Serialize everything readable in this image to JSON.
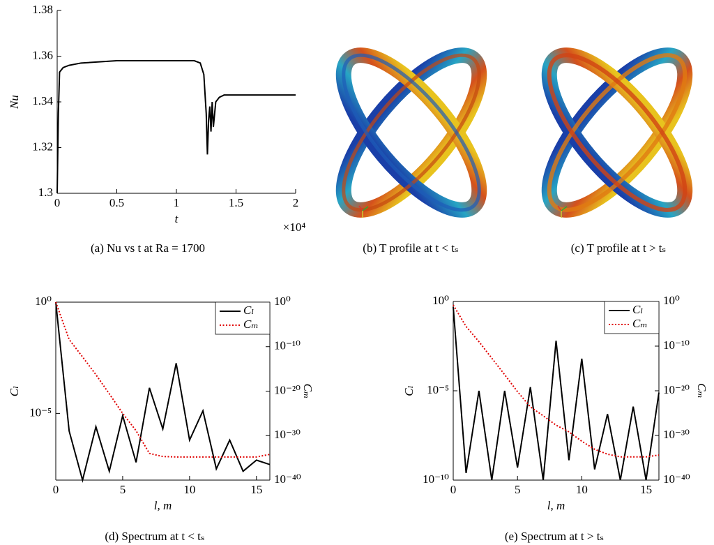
{
  "chart_data": [
    {
      "type": "line",
      "caption": "(a) Nu vs t at Ra = 1700",
      "xlabel": "t",
      "ylabel": "Nu",
      "x_multiplier": "×10⁴",
      "x": [
        0.0,
        0.01,
        0.02,
        0.05,
        0.1,
        0.2,
        0.5,
        1.0,
        1.15,
        1.2,
        1.23,
        1.25,
        1.26,
        1.27,
        1.28,
        1.29,
        1.3,
        1.31,
        1.33,
        1.36,
        1.4,
        1.5,
        2.0
      ],
      "series": [
        {
          "color": "#000000",
          "values": [
            1.3,
            1.335,
            1.353,
            1.355,
            1.356,
            1.357,
            1.358,
            1.358,
            1.358,
            1.357,
            1.352,
            1.335,
            1.317,
            1.332,
            1.338,
            1.327,
            1.34,
            1.329,
            1.34,
            1.342,
            1.343,
            1.343,
            1.343
          ]
        }
      ],
      "xlim": [
        0,
        2
      ],
      "xticks": [
        0,
        0.5,
        1,
        1.5,
        2
      ],
      "ylim": [
        1.3,
        1.38
      ],
      "yticks": [
        1.3,
        1.32,
        1.34,
        1.36,
        1.38
      ],
      "box": false
    },
    {
      "type": "line",
      "caption": "(d) Spectrum at t < tₛ",
      "xlabel": "l, m",
      "ylabel": "Cₗ",
      "y2label": "Cₘ",
      "x": [
        0,
        1,
        2,
        3,
        4,
        5,
        6,
        7,
        8,
        9,
        10,
        11,
        12,
        13,
        14,
        15,
        16
      ],
      "series": [
        {
          "name": "Cₗ",
          "color": "#000000",
          "dash": "solid",
          "values": [
            1,
            1.6e-06,
            1e-08,
            2.5e-06,
            2.5e-08,
            7.9e-06,
            6.3e-08,
            0.00014,
            2e-06,
            0.0018,
            6.3e-07,
            1.3e-05,
            3.2e-08,
            6.3e-07,
            2.5e-08,
            7.9e-08,
            5e-08
          ]
        },
        {
          "name": "Cₘ",
          "color": "#e00000",
          "dash": "dotted",
          "axis": "y2",
          "values": [
            1,
            4e-09,
            5e-13,
            5e-17,
            2.5e-21,
            1e-25,
            1.3e-29,
            1e-34,
            2e-35,
            1.6e-35,
            1.6e-35,
            1.6e-35,
            1.6e-35,
            1.6e-35,
            1.6e-35,
            1.6e-35,
            6e-35
          ]
        }
      ],
      "xlim": [
        0,
        16
      ],
      "xticks": [
        0,
        5,
        10,
        15
      ],
      "ylog": true,
      "ylim": [
        1e-08,
        1
      ],
      "yticks": [
        {
          "value": 1e-05,
          "label": "10⁻⁵"
        },
        {
          "value": 1,
          "label": "10⁰"
        }
      ],
      "y2lim": [
        1e-40,
        1
      ],
      "y2ticks": [
        {
          "value": 1e-40,
          "label": "10⁻⁴⁰"
        },
        {
          "value": 1e-30,
          "label": "10⁻³⁰"
        },
        {
          "value": 1e-20,
          "label": "10⁻²⁰"
        },
        {
          "value": 1e-10,
          "label": "10⁻¹⁰"
        },
        {
          "value": 1,
          "label": "10⁰"
        }
      ],
      "legend": "upper right",
      "box": true
    },
    {
      "type": "line",
      "caption": "(e) Spectrum at t > tₛ",
      "xlabel": "l, m",
      "ylabel": "Cₗ",
      "y2label": "Cₘ",
      "x": [
        0,
        1,
        2,
        3,
        4,
        5,
        6,
        7,
        8,
        9,
        10,
        11,
        12,
        13,
        14,
        15,
        16
      ],
      "series": [
        {
          "name": "Cₗ",
          "color": "#000000",
          "dash": "solid",
          "values": [
            0.5,
            2.5e-10,
            1e-05,
            1e-10,
            1e-05,
            5e-10,
            1.6e-05,
            1e-10,
            0.0063,
            1.3e-09,
            0.00063,
            4e-10,
            5e-07,
            1e-10,
            1.3e-06,
            1e-10,
            7.9e-06
          ]
        },
        {
          "name": "Cₘ",
          "color": "#e00000",
          "dash": "dotted",
          "axis": "y2",
          "values": [
            0.16,
            2.5e-06,
            1e-09,
            2e-13,
            4e-17,
            6.3e-21,
            2.5e-24,
            2.5e-26,
            2e-28,
            6.3e-30,
            5e-32,
            8e-34,
            6.3e-35,
            1.6e-35,
            1.6e-35,
            1.6e-35,
            4e-35
          ]
        }
      ],
      "xlim": [
        0,
        16
      ],
      "xticks": [
        0,
        5,
        10,
        15
      ],
      "ylog": true,
      "ylim": [
        1e-10,
        1
      ],
      "yticks": [
        {
          "value": 1e-10,
          "label": "10⁻¹⁰"
        },
        {
          "value": 1e-05,
          "label": "10⁻⁵"
        },
        {
          "value": 1,
          "label": "10⁰"
        }
      ],
      "y2lim": [
        1e-40,
        1
      ],
      "y2ticks": [
        {
          "value": 1e-40,
          "label": "10⁻⁴⁰"
        },
        {
          "value": 1e-30,
          "label": "10⁻³⁰"
        },
        {
          "value": 1e-20,
          "label": "10⁻²⁰"
        },
        {
          "value": 1e-10,
          "label": "10⁻¹⁰"
        },
        {
          "value": 1,
          "label": "10⁰"
        }
      ],
      "legend": "upper right",
      "box": true
    }
  ],
  "panels": {
    "b": {
      "caption": "(b) T profile at t < tₛ"
    },
    "c": {
      "caption": "(c) T profile at t > tₛ"
    }
  }
}
